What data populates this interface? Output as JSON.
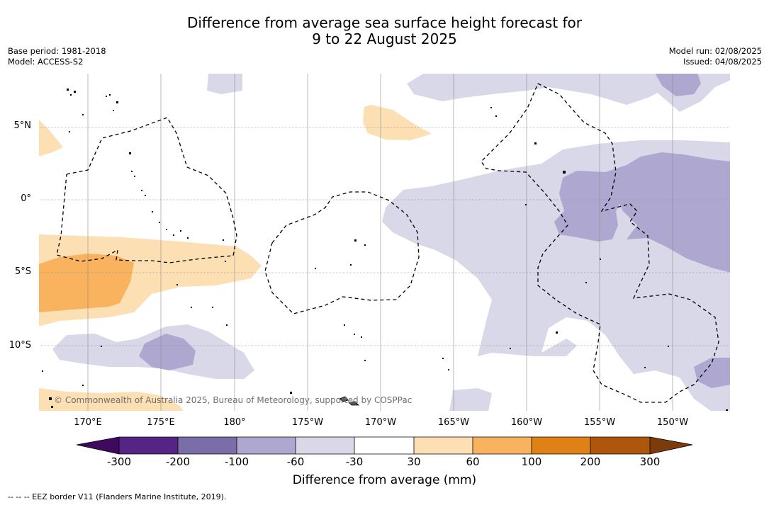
{
  "title": {
    "line1": "Difference from average sea surface height forecast for",
    "line2": "9 to 22 August 2025"
  },
  "meta_left": {
    "base_period": "Base period: 1981-2018",
    "model": "Model: ACCESS-S2"
  },
  "meta_right": {
    "model_run": "Model run: 02/08/2025",
    "issued": "Issued: 04/08/2025"
  },
  "latitude_labels": [
    "5°N",
    "0°",
    "5°S",
    "10°S"
  ],
  "longitude_labels": [
    "170°E",
    "175°E",
    "180°",
    "175°W",
    "170°W",
    "165°W",
    "160°W",
    "155°W",
    "150°W"
  ],
  "copyright": "© Commonwealth of Australia 2025, Bureau of Meteorology, supported by COSPPac",
  "colorbar": {
    "ticks": [
      "-300",
      "-200",
      "-100",
      "-60",
      "-30",
      "30",
      "60",
      "100",
      "200",
      "300"
    ],
    "colors": [
      "#3f0a5e",
      "#562485",
      "#7b6da8",
      "#aea8d0",
      "#d9d8e9",
      "#ffffff",
      "#fddfb4",
      "#f9b35e",
      "#df8117",
      "#ad560c",
      "#7b3b0a"
    ],
    "label": "Difference from average (mm)"
  },
  "footnote": "--  --  -- EEZ border V11 (Flanders Marine Institute, 2019)."
}
